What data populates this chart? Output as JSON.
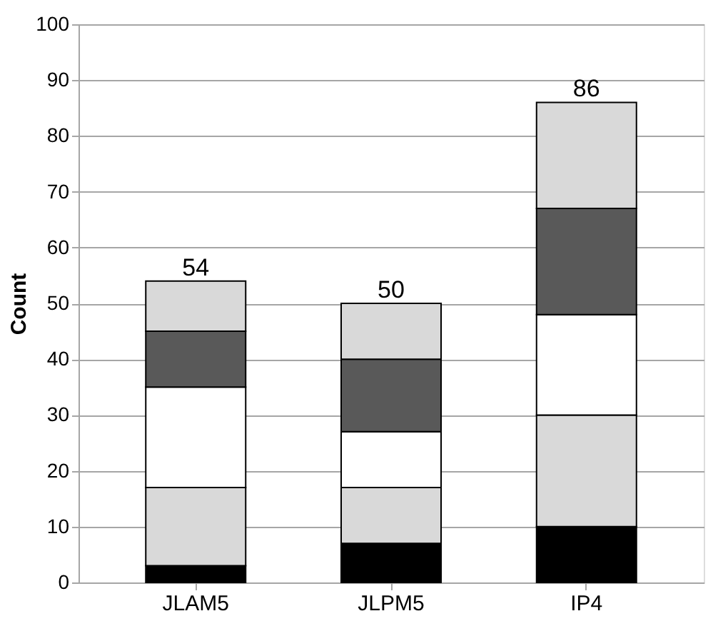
{
  "chart_data": {
    "type": "bar",
    "stacked": true,
    "ylabel": "Count",
    "categories": [
      "JLAM5",
      "JLPM5",
      "IP4"
    ],
    "series": [
      {
        "color": "#000000",
        "values": [
          3,
          7,
          10
        ]
      },
      {
        "color": "#d9d9d9",
        "values": [
          14,
          10,
          20
        ]
      },
      {
        "color": "#ffffff",
        "values": [
          18,
          10,
          18
        ]
      },
      {
        "color": "#595959",
        "values": [
          10,
          13,
          19
        ]
      },
      {
        "color": "#d9d9d9",
        "values": [
          9,
          10,
          19
        ]
      }
    ],
    "totals": [
      "54",
      "50",
      "86"
    ],
    "ylim": [
      0,
      100
    ],
    "yticks": [
      0,
      10,
      20,
      30,
      40,
      50,
      60,
      70,
      80,
      90,
      100
    ],
    "grid": "y"
  }
}
